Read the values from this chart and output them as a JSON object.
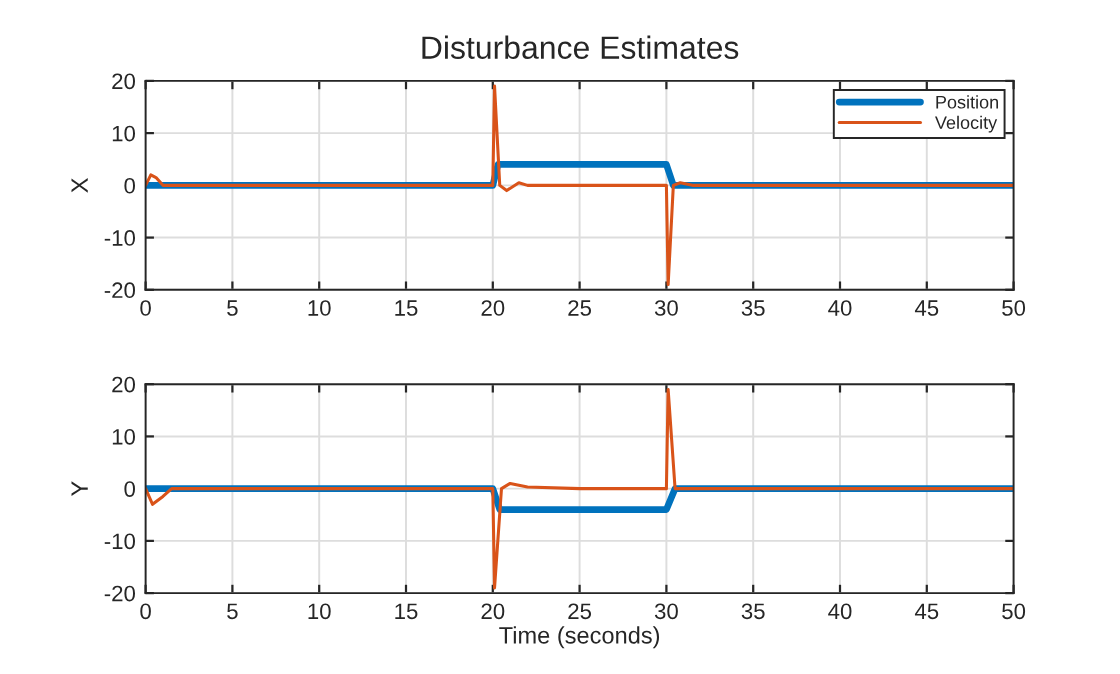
{
  "chart_data": [
    {
      "type": "line",
      "title": "Disturbance Estimates",
      "ylabel": "X",
      "xlim": [
        0,
        50
      ],
      "ylim": [
        -20,
        20
      ],
      "xticks": [
        0,
        5,
        10,
        15,
        20,
        25,
        30,
        35,
        40,
        45,
        50
      ],
      "yticks": [
        -20,
        -10,
        0,
        10,
        20
      ],
      "grid": true,
      "legend": "top right",
      "series": [
        {
          "name": "Position",
          "color": "#0072bd",
          "x": [
            0,
            20,
            20.3,
            30,
            30.4,
            50
          ],
          "values": [
            0,
            0,
            4,
            4,
            0,
            0
          ]
        },
        {
          "name": "Velocity",
          "color": "#d95319",
          "x": [
            0,
            0.3,
            0.6,
            1,
            20,
            20.1,
            20.4,
            20.8,
            21.5,
            22,
            30,
            30.1,
            30.4,
            30.8,
            31.5,
            50
          ],
          "values": [
            0,
            2,
            1.5,
            0,
            0,
            19,
            0,
            -1,
            0.5,
            0,
            0,
            -19,
            0,
            0.5,
            0,
            0
          ]
        }
      ]
    },
    {
      "type": "line",
      "ylabel": "Y",
      "xlabel": "Time (seconds)",
      "xlim": [
        0,
        50
      ],
      "ylim": [
        -20,
        20
      ],
      "xticks": [
        0,
        5,
        10,
        15,
        20,
        25,
        30,
        35,
        40,
        45,
        50
      ],
      "yticks": [
        -20,
        -10,
        0,
        10,
        20
      ],
      "grid": true,
      "series": [
        {
          "color": "#0072bd",
          "x": [
            0,
            20,
            20.4,
            30,
            30.5,
            50
          ],
          "values": [
            0,
            0,
            -4,
            -4,
            0,
            0
          ]
        },
        {
          "color": "#d95319",
          "x": [
            0,
            0.4,
            1,
            1.5,
            20,
            20.1,
            20.5,
            21,
            22,
            25,
            30,
            30.1,
            30.5,
            50
          ],
          "values": [
            0,
            -3,
            -1.5,
            0,
            0,
            -19,
            0,
            1,
            0.3,
            0,
            0,
            19,
            0,
            0
          ]
        }
      ]
    }
  ]
}
